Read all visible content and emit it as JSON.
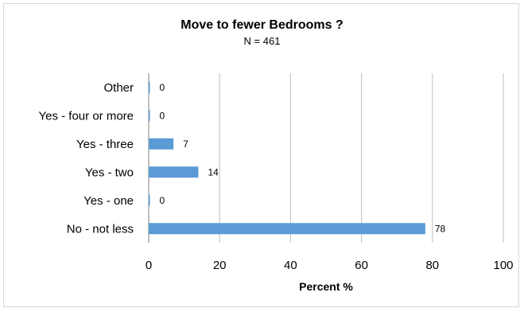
{
  "chart_data": {
    "type": "bar",
    "orientation": "horizontal",
    "title": "Move to fewer Bedrooms ?",
    "subtitle": "N = 461",
    "xlabel": "Percent %",
    "ylabel": "",
    "categories": [
      "Other",
      "Yes - four or more",
      "Yes - three",
      "Yes - two",
      "Yes - one",
      "No -  not less"
    ],
    "values": [
      0,
      0,
      7,
      14,
      0,
      78
    ],
    "xlim": [
      0,
      100
    ],
    "xticks": [
      0,
      20,
      40,
      60,
      80,
      100
    ],
    "grid": "vertical",
    "legend": "none",
    "bar_color": "#5b9bd5",
    "grid_color": "#bfbfbf"
  }
}
